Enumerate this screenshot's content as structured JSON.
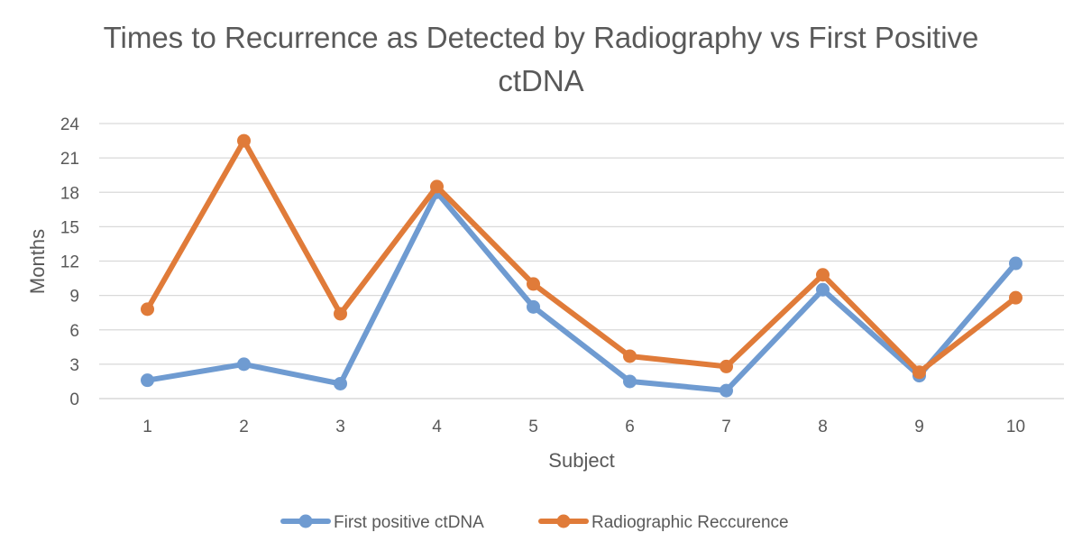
{
  "chart_data": {
    "type": "line",
    "title_lines": [
      "Times to Recurrence as Detected by Radiography vs First Positive",
      "ctDNA"
    ],
    "xlabel": "Subject",
    "ylabel": "Months",
    "categories": [
      "1",
      "2",
      "3",
      "4",
      "5",
      "6",
      "7",
      "8",
      "9",
      "10"
    ],
    "ylim": [
      0,
      24
    ],
    "yticks": [
      "0",
      "3",
      "6",
      "9",
      "12",
      "15",
      "18",
      "21",
      "24"
    ],
    "grid": "horizontal",
    "legend_position": "bottom",
    "series": [
      {
        "name": "First positive ctDNA",
        "color": "#6F9BD1",
        "values": [
          1.6,
          3.0,
          1.3,
          18.0,
          8.0,
          1.5,
          0.7,
          9.5,
          2.0,
          11.8
        ]
      },
      {
        "name": "Radiographic Reccurence",
        "color": "#E07B39",
        "values": [
          7.8,
          22.5,
          7.4,
          18.5,
          10.0,
          3.7,
          2.8,
          10.8,
          2.3,
          8.8
        ]
      }
    ]
  }
}
